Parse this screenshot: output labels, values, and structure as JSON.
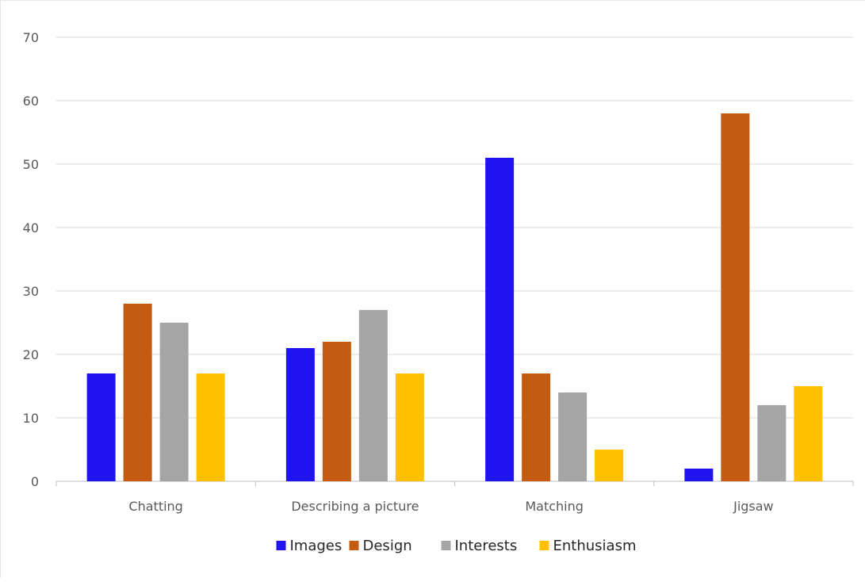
{
  "chart_data": {
    "type": "bar",
    "title": "",
    "xlabel": "",
    "ylabel": "",
    "ylim": [
      0,
      70
    ],
    "yticks": [
      0,
      10,
      20,
      30,
      40,
      50,
      60,
      70
    ],
    "grid": true,
    "legend": "bottom",
    "categories": [
      "Chatting",
      "Describing a picture",
      "Matching",
      "Jigsaw"
    ],
    "series": [
      {
        "name": "Images",
        "color": "#1f13ef",
        "values": [
          17,
          21,
          51,
          2
        ]
      },
      {
        "name": "Design",
        "color": "#c55a11",
        "values": [
          28,
          22,
          17,
          58
        ]
      },
      {
        "name": "Interests",
        "color": "#a5a5a5",
        "values": [
          25,
          27,
          14,
          12
        ]
      },
      {
        "name": "Enthusiasm",
        "color": "#ffc000",
        "values": [
          17,
          17,
          5,
          15
        ]
      }
    ]
  }
}
